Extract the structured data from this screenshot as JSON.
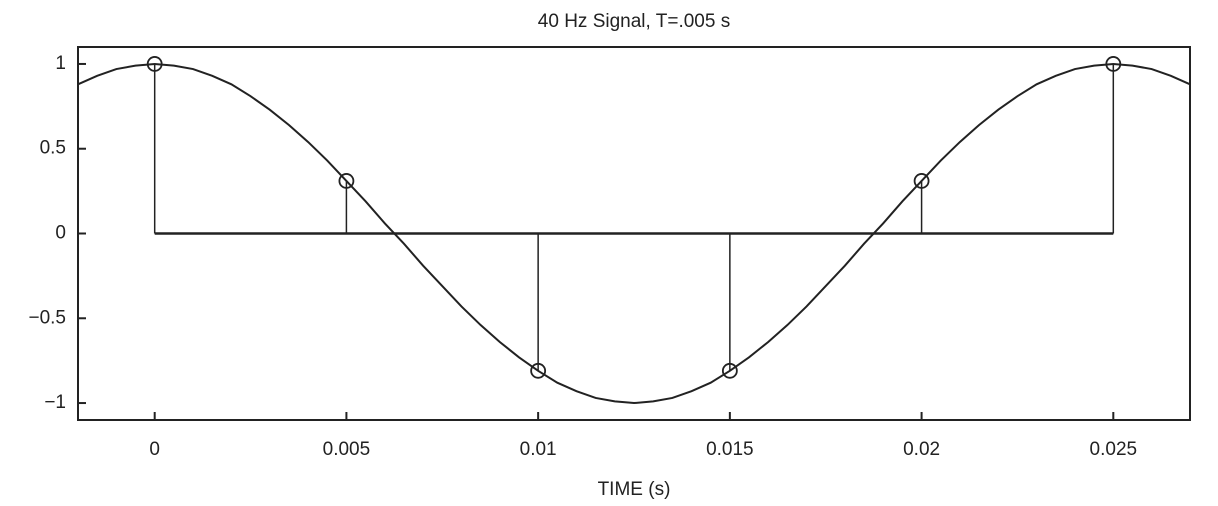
{
  "chart_data": {
    "type": "stem",
    "title": "40 Hz Signal, T=.005 s",
    "xlabel": "TIME (s)",
    "xlim": [
      -0.002,
      0.027
    ],
    "ylim": [
      -1.1,
      1.1
    ],
    "xticks": [
      0,
      0.005,
      0.01,
      0.015,
      0.02,
      0.025
    ],
    "yticks": [
      {
        "value": -1,
        "label": "−1"
      },
      {
        "value": -0.5,
        "label": "−0.5"
      },
      0,
      0.5,
      1
    ],
    "series": [
      {
        "type": "line",
        "color": "#222222",
        "x": [
          -0.002,
          -0.0015,
          -0.001,
          -0.0005,
          0,
          0.0005,
          0.001,
          0.0015,
          0.002,
          0.0025,
          0.003,
          0.0035,
          0.004,
          0.0045,
          0.005,
          0.0055,
          0.006,
          0.0065,
          0.007,
          0.0075,
          0.008,
          0.0085,
          0.009,
          0.0095,
          0.01,
          0.0105,
          0.011,
          0.0115,
          0.012,
          0.0125,
          0.013,
          0.0135,
          0.014,
          0.0145,
          0.015,
          0.0155,
          0.016,
          0.0165,
          0.017,
          0.0175,
          0.018,
          0.0185,
          0.019,
          0.0195,
          0.02,
          0.0205,
          0.021,
          0.0215,
          0.022,
          0.0225,
          0.023,
          0.0235,
          0.024,
          0.0245,
          0.025,
          0.0255,
          0.026,
          0.0265,
          0.027
        ],
        "values": [
          0.88,
          0.93,
          0.97,
          0.99,
          1,
          0.99,
          0.97,
          0.93,
          0.88,
          0.81,
          0.73,
          0.64,
          0.54,
          0.43,
          0.31,
          0.19,
          0.06,
          -0.06,
          -0.19,
          -0.31,
          -0.43,
          -0.54,
          -0.64,
          -0.73,
          -0.81,
          -0.88,
          -0.93,
          -0.97,
          -0.99,
          -1,
          -0.99,
          -0.97,
          -0.93,
          -0.88,
          -0.81,
          -0.73,
          -0.64,
          -0.54,
          -0.43,
          -0.31,
          -0.19,
          -0.06,
          0.06,
          0.19,
          0.31,
          0.43,
          0.54,
          0.64,
          0.73,
          0.81,
          0.88,
          0.93,
          0.97,
          0.99,
          1,
          0.99,
          0.97,
          0.93,
          0.88
        ]
      },
      {
        "type": "stem",
        "color": "#222222",
        "x": [
          0,
          0.005,
          0.01,
          0.015,
          0.02,
          0.025
        ],
        "values": [
          1,
          0.31,
          -0.81,
          -0.81,
          0.31,
          1
        ]
      }
    ]
  }
}
